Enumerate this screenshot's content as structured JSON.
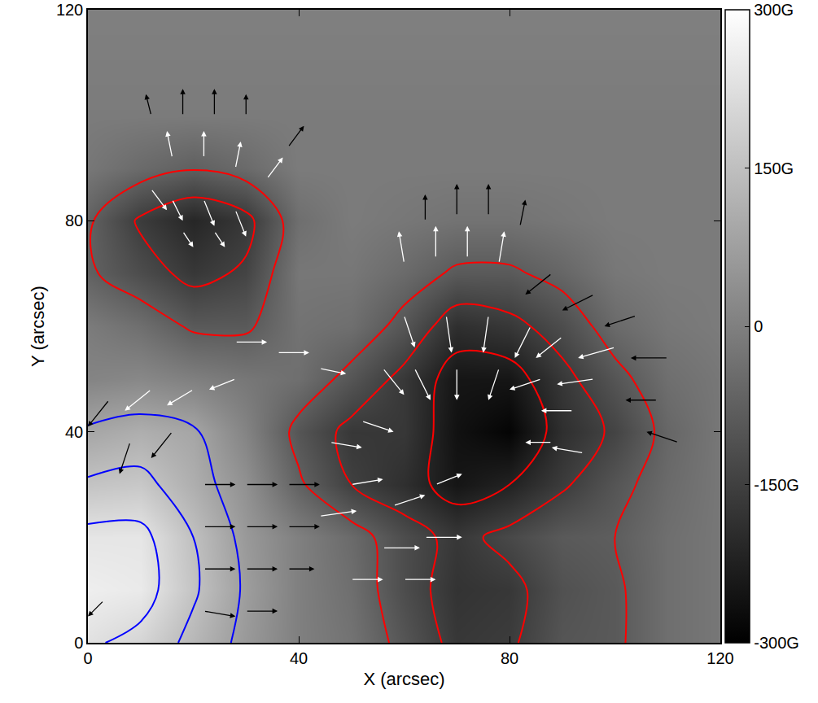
{
  "chart_data": {
    "type": "heatmap",
    "x_label": "X (arcsec)",
    "y_label": "Y (arcsec)",
    "x": [
      0,
      10,
      20,
      30,
      40,
      50,
      60,
      70,
      80,
      90,
      100,
      110,
      120
    ],
    "y": [
      0,
      10,
      20,
      30,
      40,
      50,
      60,
      70,
      80,
      90,
      100,
      110,
      120
    ],
    "z": [
      [
        230,
        200,
        130,
        60,
        0,
        -30,
        -100,
        -170,
        -160,
        -100,
        -90,
        -40,
        -20
      ],
      [
        260,
        250,
        160,
        70,
        0,
        -40,
        -120,
        -180,
        -170,
        -110,
        -90,
        -40,
        -20
      ],
      [
        240,
        240,
        150,
        60,
        0,
        -50,
        -120,
        -170,
        -130,
        -90,
        -80,
        -40,
        -20
      ],
      [
        160,
        170,
        110,
        40,
        -70,
        -150,
        -190,
        -250,
        -220,
        -160,
        -100,
        -50,
        -20
      ],
      [
        90,
        110,
        90,
        10,
        -100,
        -170,
        -170,
        -260,
        -290,
        -190,
        -140,
        -60,
        -20
      ],
      [
        10,
        20,
        0,
        -20,
        -40,
        -100,
        -170,
        -250,
        -250,
        -170,
        -100,
        -40,
        -20
      ],
      [
        -10,
        -40,
        -90,
        -90,
        -30,
        -40,
        -100,
        -190,
        -170,
        -120,
        -50,
        -20,
        -10
      ],
      [
        -70,
        -120,
        -170,
        -140,
        -20,
        -20,
        -50,
        -90,
        -90,
        -60,
        -20,
        -10,
        -10
      ],
      [
        -70,
        -160,
        -210,
        -170,
        -40,
        -10,
        -20,
        -30,
        -30,
        -20,
        -10,
        -10,
        -10
      ],
      [
        -20,
        -50,
        -75,
        -50,
        -10,
        -10,
        -10,
        -10,
        -10,
        -10,
        -10,
        -10,
        -10
      ],
      [
        -10,
        -10,
        -10,
        -10,
        -10,
        -10,
        -10,
        -10,
        -10,
        -10,
        -10,
        -10,
        -10
      ],
      [
        -5,
        -5,
        -5,
        -5,
        -5,
        -5,
        -5,
        -5,
        -5,
        -5,
        -5,
        -5,
        -5
      ],
      [
        0,
        0,
        0,
        0,
        0,
        0,
        0,
        0,
        0,
        0,
        0,
        0,
        0
      ]
    ],
    "xlim": [
      0,
      120
    ],
    "ylim": [
      0,
      120
    ],
    "xticks": [
      0,
      40,
      80,
      120
    ],
    "yticks": [
      0,
      40,
      80,
      120
    ],
    "colorbar": {
      "range": [
        -300,
        300
      ],
      "ticks": [
        {
          "value": -300,
          "label": "-300G"
        },
        {
          "value": -150,
          "label": "-150G"
        },
        0,
        {
          "value": 150,
          "label": "150G"
        },
        {
          "value": 300,
          "label": "300G"
        }
      ]
    },
    "contours": [
      {
        "color": "red",
        "levels": [
          -220,
          -150,
          -80
        ]
      },
      {
        "color": "blue",
        "levels": [
          80,
          150,
          220
        ]
      }
    ],
    "vectors": {
      "x": [
        64,
        70,
        76,
        82,
        60,
        66,
        72,
        78,
        88,
        96,
        104,
        110,
        108,
        112,
        100,
        96,
        60,
        68,
        76,
        84,
        90,
        56,
        62,
        86,
        92,
        94,
        88,
        52,
        46,
        50,
        58,
        66,
        44,
        56,
        64,
        50,
        60,
        22,
        30,
        22,
        30,
        22,
        30,
        22,
        30,
        38,
        38,
        38,
        4,
        12,
        20,
        28,
        8,
        16,
        3,
        36,
        44,
        28,
        12,
        18,
        24,
        30,
        16,
        22,
        28,
        34,
        38,
        16,
        22,
        28,
        12,
        18,
        24,
        70,
        78
      ],
      "y": [
        80,
        81,
        81,
        79,
        72,
        73,
        73,
        72,
        70,
        66,
        62,
        54,
        46,
        38,
        56,
        50,
        62,
        62,
        62,
        60,
        58,
        52,
        52,
        50,
        44,
        36,
        38,
        42,
        38,
        30,
        26,
        30,
        24,
        18,
        20,
        12,
        12,
        30,
        30,
        22,
        22,
        14,
        14,
        6,
        6,
        30,
        22,
        14,
        46,
        48,
        48,
        50,
        38,
        40,
        8,
        55,
        52,
        57,
        100,
        100,
        100,
        100,
        92,
        92,
        90,
        88,
        94,
        84,
        84,
        82,
        86,
        78,
        78,
        52,
        52
      ],
      "u": [
        0,
        0,
        0,
        1,
        -1,
        0,
        0,
        1,
        -5,
        -6,
        -6,
        -7,
        -6,
        -6,
        -7,
        -7,
        2,
        1,
        -1,
        -3,
        -5,
        4,
        3,
        -6,
        -6,
        -6,
        -5,
        6,
        6,
        6,
        6,
        5,
        7,
        7,
        7,
        6,
        6,
        6,
        6,
        6,
        6,
        6,
        6,
        6,
        6,
        6,
        6,
        5,
        -4,
        -5,
        -5,
        -5,
        -2,
        -4,
        -3,
        6,
        5,
        6,
        -1,
        0,
        0,
        0,
        -1,
        0,
        1,
        3,
        3,
        2,
        2,
        2,
        3,
        2,
        2,
        0,
        -2
      ],
      "v": [
        5,
        6,
        6,
        5,
        6,
        6,
        6,
        6,
        -4,
        -3,
        -2,
        0,
        0,
        2,
        -2,
        -1,
        -6,
        -7,
        -7,
        -6,
        -4,
        -5,
        -6,
        -2,
        0,
        1,
        0,
        -2,
        -1,
        1,
        2,
        2,
        1,
        0,
        0,
        0,
        0,
        0,
        0,
        0,
        0,
        0,
        0,
        -1,
        0,
        0,
        0,
        0,
        -5,
        -4,
        -3,
        -2,
        -6,
        -5,
        -3,
        0,
        -1,
        0,
        4,
        5,
        5,
        4,
        5,
        5,
        5,
        4,
        4,
        -4,
        -5,
        -5,
        -4,
        -3,
        -3,
        -6,
        -6
      ],
      "colors": [
        "black",
        "black",
        "black",
        "black",
        "white",
        "white",
        "white",
        "white",
        "black",
        "black",
        "black",
        "black",
        "black",
        "black",
        "white",
        "white",
        "white",
        "white",
        "white",
        "white",
        "white",
        "white",
        "white",
        "white",
        "white",
        "white",
        "white",
        "white",
        "white",
        "white",
        "white",
        "white",
        "white",
        "white",
        "white",
        "white",
        "white",
        "black",
        "black",
        "black",
        "black",
        "black",
        "black",
        "black",
        "black",
        "black",
        "black",
        "black",
        "black",
        "white",
        "white",
        "white",
        "black",
        "black",
        "black",
        "white",
        "white",
        "white",
        "black",
        "black",
        "black",
        "black",
        "white",
        "white",
        "white",
        "white",
        "black",
        "white",
        "white",
        "white",
        "white",
        "white",
        "white",
        "white",
        "white"
      ]
    }
  }
}
